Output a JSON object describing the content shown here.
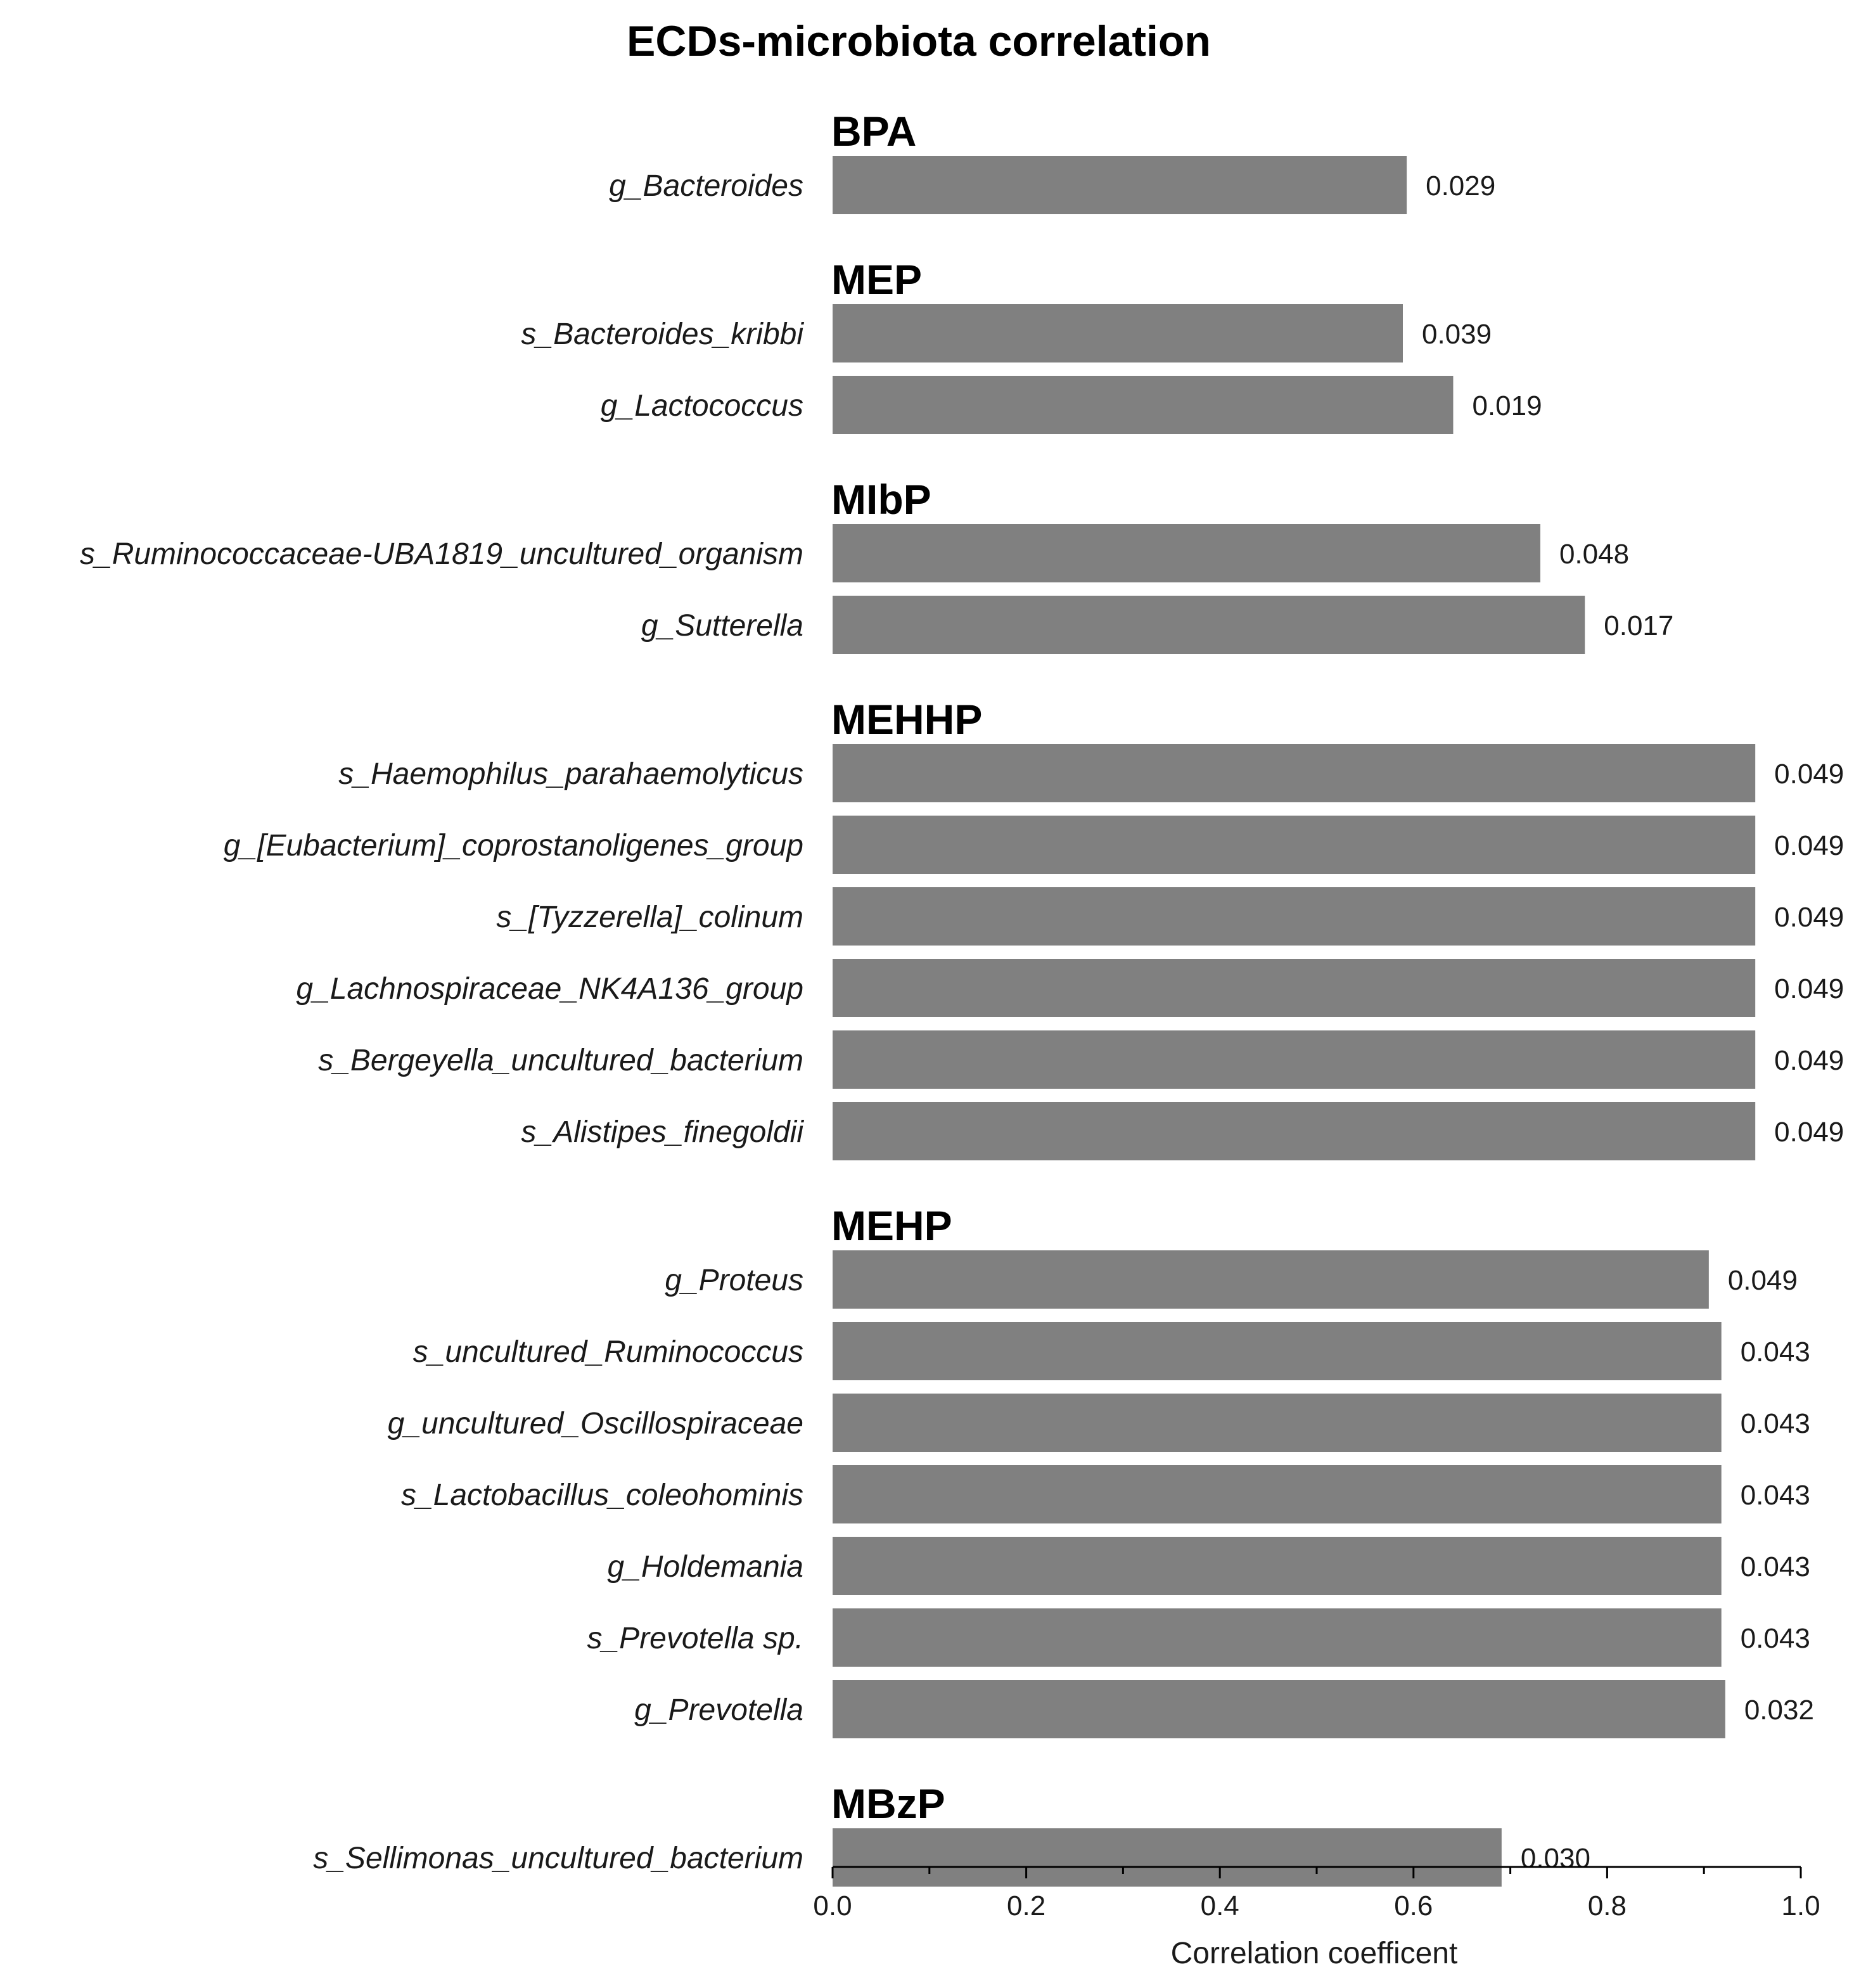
{
  "chart_data": {
    "type": "bar",
    "orientation": "horizontal",
    "title": "ECDs-microbiota correlation",
    "xlabel": "Correlation coefficent",
    "ylabel": "",
    "xlim": [
      0.0,
      1.0
    ],
    "ticks": [
      "0.0",
      "0.2",
      "0.4",
      "0.6",
      "0.8",
      "1.0"
    ],
    "tick_values": [
      0.0,
      0.2,
      0.4,
      0.6,
      0.8,
      1.0
    ],
    "bar_color": "#808080",
    "groups": [
      {
        "name": "BPA",
        "items": [
          {
            "label": "g_Bacteroides",
            "value": 0.593,
            "annotation": "0.029"
          }
        ]
      },
      {
        "name": "MEP",
        "items": [
          {
            "label": "s_Bacteroides_kribbi",
            "value": 0.589,
            "annotation": "0.039"
          },
          {
            "label": "g_Lactococcus",
            "value": 0.641,
            "annotation": "0.019"
          }
        ]
      },
      {
        "name": "MIbP",
        "items": [
          {
            "label": "s_Ruminococcaceae-UBA1819_uncultured_organism",
            "value": 0.731,
            "annotation": "0.048"
          },
          {
            "label": "g_Sutterella",
            "value": 0.777,
            "annotation": "0.017"
          }
        ]
      },
      {
        "name": "MEHHP",
        "items": [
          {
            "label": "s_Haemophilus_parahaemolyticus",
            "value": 0.953,
            "annotation": "0.049"
          },
          {
            "label": "g_[Eubacterium]_coprostanoligenes_group",
            "value": 0.953,
            "annotation": "0.049"
          },
          {
            "label": "s_[Tyzzerella]_colinum",
            "value": 0.953,
            "annotation": "0.049"
          },
          {
            "label": "g_Lachnospiraceae_NK4A136_group",
            "value": 0.953,
            "annotation": "0.049"
          },
          {
            "label": "s_Bergeyella_uncultured_bacterium",
            "value": 0.953,
            "annotation": "0.049"
          },
          {
            "label": "s_Alistipes_finegoldii",
            "value": 0.953,
            "annotation": "0.049"
          }
        ]
      },
      {
        "name": "MEHP",
        "items": [
          {
            "label": "g_Proteus",
            "value": 0.905,
            "annotation": "0.049"
          },
          {
            "label": "s_uncultured_Ruminococcus",
            "value": 0.918,
            "annotation": "0.043"
          },
          {
            "label": "g_uncultured_Oscillospiraceae",
            "value": 0.918,
            "annotation": "0.043"
          },
          {
            "label": "s_Lactobacillus_coleohominis",
            "value": 0.918,
            "annotation": "0.043"
          },
          {
            "label": "g_Holdemania",
            "value": 0.918,
            "annotation": "0.043"
          },
          {
            "label": "s_Prevotella sp.",
            "value": 0.918,
            "annotation": "0.043"
          },
          {
            "label": "g_Prevotella",
            "value": 0.922,
            "annotation": "0.032"
          }
        ]
      },
      {
        "name": "MBzP",
        "items": [
          {
            "label": "s_Sellimonas_uncultured_bacterium",
            "value": 0.691,
            "annotation": "0.030"
          }
        ]
      }
    ]
  }
}
